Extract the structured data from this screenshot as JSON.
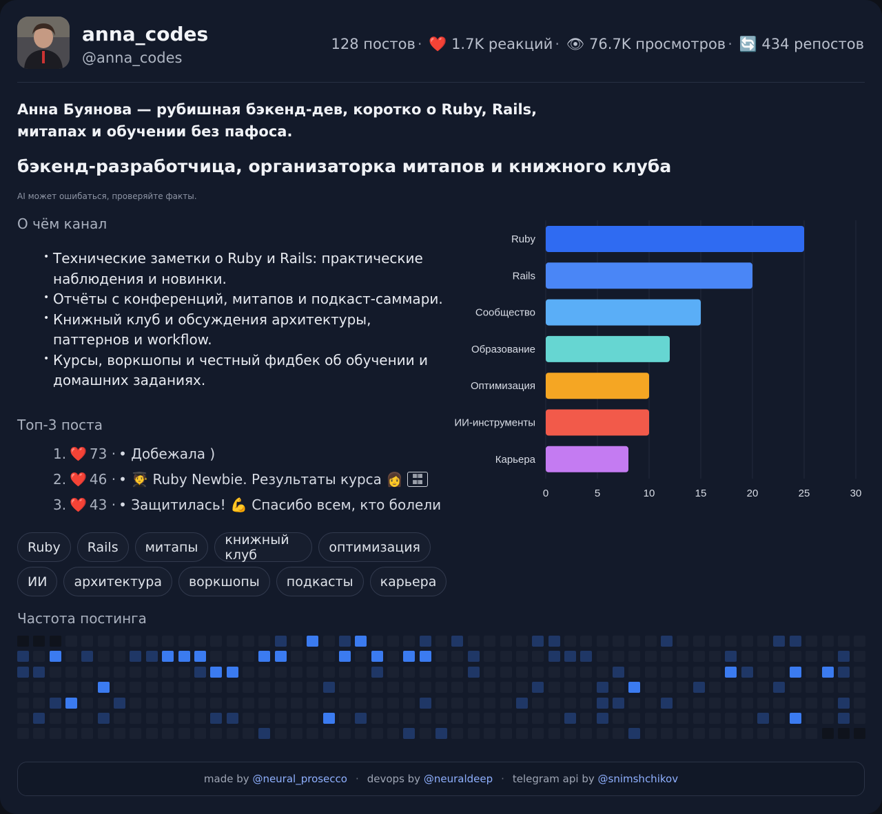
{
  "profile": {
    "name": "anna_codes",
    "handle": "@anna_codes",
    "avatar_icon": "user-photo-icon"
  },
  "stats": {
    "posts": "128 постов",
    "reactions": "1.7K реакций",
    "views": "76.7K просмотров",
    "reposts": "434 репостов",
    "icons": [
      "heart-icon",
      "eye-icon",
      "repost-icon"
    ]
  },
  "summary": "Анна Буянова — рубишная бэкенд-дев, коротко о Ruby, Rails, митапах и обучении без пафоса.",
  "subtitle": "бэкенд-разработчица, организаторка митапов и книжного клуба",
  "disclaimer": "AI может ошибаться, проверяйте факты.",
  "about": {
    "title": "О чём канал",
    "items": [
      "Технические заметки о Ruby и Rails: практические наблюдения и новинки.",
      "Отчёты с конференций, митапов и подкаст-саммари.",
      "Книжный клуб и обсуждения архитектуры, паттернов и workflow.",
      "Курсы, воркшопы и честный фидбек об обучении и домашних заданиях."
    ]
  },
  "top_posts": {
    "title": "Топ-3 поста",
    "items": [
      {
        "num": "1.",
        "count": "73",
        "text": "• Добежала )"
      },
      {
        "num": "2.",
        "count": "46",
        "text": "• 🧑‍🎓 Ruby Newbie. Результаты курса 👩"
      },
      {
        "num": "3.",
        "count": "43",
        "text": "• Защитилась! 💪 Спасибо всем, кто болели"
      }
    ]
  },
  "tags": {
    "row1": [
      "Ruby",
      "Rails",
      "митапы",
      "книжный клуб",
      "оптимизация"
    ],
    "row2": [
      "ИИ",
      "архитектура",
      "воркшопы",
      "подкасты",
      "карьера"
    ]
  },
  "chart_data": {
    "type": "bar",
    "orientation": "horizontal",
    "categories": [
      "Ruby",
      "Rails",
      "Сообщество",
      "Образование",
      "Оптимизация",
      "ИИ-инструменты",
      "Карьера"
    ],
    "values": [
      25,
      20,
      15,
      12,
      10,
      10,
      8
    ],
    "colors": [
      "#2f6bf2",
      "#4a86f6",
      "#5aaef7",
      "#66d6d2",
      "#f5a623",
      "#f25a4a",
      "#c47bf2"
    ],
    "xlim": [
      0,
      30
    ],
    "xticks": [
      0,
      5,
      10,
      15,
      20,
      25,
      30
    ],
    "grid": true
  },
  "frequency": {
    "title": "Частота постинга",
    "rows": 7,
    "cols": 53,
    "active": [
      [
        0,
        18,
        3
      ],
      [
        0,
        21,
        3
      ],
      [
        0,
        16,
        1
      ],
      [
        0,
        20,
        1
      ],
      [
        0,
        25,
        1
      ],
      [
        0,
        27,
        1
      ],
      [
        0,
        32,
        1
      ],
      [
        0,
        33,
        1
      ],
      [
        0,
        40,
        1
      ],
      [
        0,
        47,
        1
      ],
      [
        0,
        48,
        1
      ],
      [
        1,
        2,
        3
      ],
      [
        1,
        9,
        3
      ],
      [
        1,
        10,
        3
      ],
      [
        1,
        11,
        3
      ],
      [
        1,
        15,
        3
      ],
      [
        1,
        16,
        3
      ],
      [
        1,
        20,
        3
      ],
      [
        1,
        22,
        3
      ],
      [
        1,
        24,
        3
      ],
      [
        1,
        25,
        3
      ],
      [
        1,
        0,
        1
      ],
      [
        1,
        4,
        1
      ],
      [
        1,
        7,
        1
      ],
      [
        1,
        8,
        1
      ],
      [
        1,
        28,
        1
      ],
      [
        1,
        33,
        1
      ],
      [
        1,
        34,
        1
      ],
      [
        1,
        35,
        1
      ],
      [
        1,
        44,
        1
      ],
      [
        1,
        51,
        1
      ],
      [
        2,
        12,
        3
      ],
      [
        2,
        13,
        3
      ],
      [
        2,
        44,
        3
      ],
      [
        2,
        48,
        3
      ],
      [
        2,
        50,
        3
      ],
      [
        2,
        0,
        1
      ],
      [
        2,
        1,
        1
      ],
      [
        2,
        11,
        1
      ],
      [
        2,
        22,
        1
      ],
      [
        2,
        28,
        1
      ],
      [
        2,
        37,
        1
      ],
      [
        2,
        45,
        1
      ],
      [
        2,
        51,
        1
      ],
      [
        3,
        5,
        3
      ],
      [
        3,
        38,
        3
      ],
      [
        3,
        19,
        1
      ],
      [
        3,
        32,
        1
      ],
      [
        3,
        36,
        1
      ],
      [
        3,
        42,
        1
      ],
      [
        3,
        47,
        1
      ],
      [
        4,
        3,
        3
      ],
      [
        4,
        2,
        1
      ],
      [
        4,
        6,
        1
      ],
      [
        4,
        25,
        1
      ],
      [
        4,
        31,
        1
      ],
      [
        4,
        36,
        1
      ],
      [
        4,
        37,
        1
      ],
      [
        4,
        40,
        1
      ],
      [
        4,
        51,
        1
      ],
      [
        5,
        19,
        3
      ],
      [
        5,
        48,
        3
      ],
      [
        5,
        1,
        1
      ],
      [
        5,
        5,
        1
      ],
      [
        5,
        12,
        1
      ],
      [
        5,
        13,
        1
      ],
      [
        5,
        21,
        1
      ],
      [
        5,
        34,
        1
      ],
      [
        5,
        36,
        1
      ],
      [
        5,
        46,
        1
      ],
      [
        5,
        51,
        1
      ],
      [
        6,
        15,
        1
      ],
      [
        6,
        24,
        1
      ],
      [
        6,
        26,
        1
      ],
      [
        6,
        38,
        1
      ]
    ],
    "dark": [
      [
        0,
        0
      ],
      [
        0,
        1
      ],
      [
        0,
        2
      ],
      [
        6,
        50
      ],
      [
        6,
        51
      ],
      [
        6,
        52
      ]
    ]
  },
  "footer": {
    "made_by": "made by",
    "made_by_link": "@neural_prosecco",
    "devops_by": "devops by",
    "devops_link": "@neuraldeep",
    "api_by": "telegram api by",
    "api_link": "@snimshchikov",
    "separator": "·"
  }
}
